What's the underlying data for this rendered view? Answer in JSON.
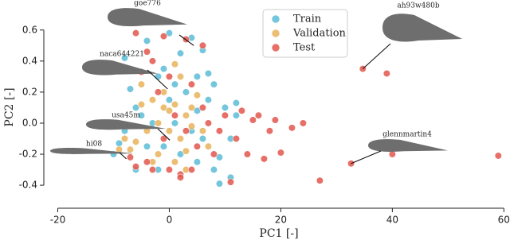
{
  "chart_data": {
    "type": "scatter",
    "xlabel": "PC1 [-]",
    "ylabel": "PC2 [-]",
    "xlim": [
      -22.5,
      61.1
    ],
    "ylim": [
      -0.42,
      0.65
    ],
    "xticks": [
      -20,
      0,
      20,
      40,
      60
    ],
    "yticks": [
      0.6,
      0.4,
      0.2,
      0.0,
      -0.2,
      -0.4
    ],
    "legend": "upper center",
    "series": [
      {
        "name": "Train",
        "color": "#5bbcd6",
        "x": [
          -8,
          -4,
          0,
          4,
          6,
          2,
          -2,
          5,
          8,
          -6,
          -9,
          -10,
          -8,
          -5,
          0,
          3,
          7,
          10,
          12,
          11,
          9,
          11,
          8,
          5,
          2,
          -1,
          -4,
          -6,
          1,
          4,
          6,
          -3,
          -1,
          1,
          9,
          12,
          -2,
          7,
          5,
          -7
        ],
        "y": [
          0.42,
          0.53,
          0.58,
          0.55,
          0.47,
          0.45,
          0.3,
          0.3,
          0.25,
          0.1,
          -0.13,
          -0.2,
          -0.05,
          0.05,
          0.15,
          0.2,
          0.15,
          0.1,
          0.05,
          -0.1,
          -0.22,
          -0.35,
          -0.3,
          -0.25,
          -0.2,
          -0.15,
          -0.15,
          -0.3,
          0.0,
          -0.05,
          -0.1,
          0.0,
          0.35,
          0.25,
          -0.39,
          0.13,
          -0.3,
          0.32,
          0.08,
          0.22
        ]
      },
      {
        "name": "Validation",
        "color": "#e8b35a",
        "x": [
          -5,
          -3,
          -1,
          1,
          3,
          -2,
          0,
          2,
          4,
          -4,
          -6,
          -2,
          1,
          3,
          6,
          -8,
          -1,
          5,
          2,
          -3,
          0,
          7,
          -7,
          4,
          -5,
          1,
          3,
          -9
        ],
        "y": [
          0.25,
          0.15,
          0.1,
          0.12,
          0.05,
          0.0,
          -0.05,
          -0.1,
          0.1,
          -0.05,
          -0.12,
          -0.2,
          -0.25,
          -0.18,
          -0.05,
          -0.1,
          0.2,
          0.18,
          0.3,
          -0.25,
          0.08,
          -0.15,
          -0.17,
          -0.02,
          0.12,
          0.38,
          -0.3,
          -0.17
        ]
      },
      {
        "name": "Test",
        "color": "#e2574c",
        "x": [
          34.7,
          39,
          32.6,
          59,
          27,
          40,
          22,
          24,
          19,
          18,
          20,
          17,
          14,
          12,
          15,
          13,
          16,
          6,
          3,
          -1,
          -6,
          -4,
          -3,
          -5,
          0,
          -7,
          -6,
          -3,
          0,
          2,
          4,
          5,
          3,
          1,
          -1,
          7,
          9,
          8,
          -2,
          4,
          11,
          2,
          -4,
          10,
          6
        ],
        "y": [
          0.35,
          0.32,
          -0.26,
          -0.21,
          -0.37,
          -0.2,
          -0.03,
          0.0,
          0.02,
          -0.05,
          -0.19,
          -0.23,
          -0.2,
          -0.1,
          0.02,
          0.08,
          0.05,
          0.5,
          0.54,
          0.56,
          0.58,
          0.46,
          0.4,
          0.33,
          0.3,
          -0.22,
          -0.28,
          -0.3,
          -0.3,
          -0.33,
          -0.3,
          -0.15,
          -0.05,
          0.05,
          -0.1,
          0.0,
          -0.05,
          -0.2,
          0.2,
          0.25,
          -0.38,
          -0.35,
          -0.25,
          0.05,
          0.1
        ]
      }
    ],
    "annotations": [
      {
        "text": "goe776",
        "x": 4.4,
        "y": 0.5
      },
      {
        "text": "naca644221",
        "x": -0.3,
        "y": 0.22
      },
      {
        "text": "usa45m",
        "x": 0.1,
        "y": -0.11
      },
      {
        "text": "hi08",
        "x": -7.7,
        "y": -0.23
      },
      {
        "text": "ah93w480b",
        "x": 34.7,
        "y": 0.35
      },
      {
        "text": "glennmartin4",
        "x": 32.6,
        "y": -0.26
      }
    ]
  }
}
